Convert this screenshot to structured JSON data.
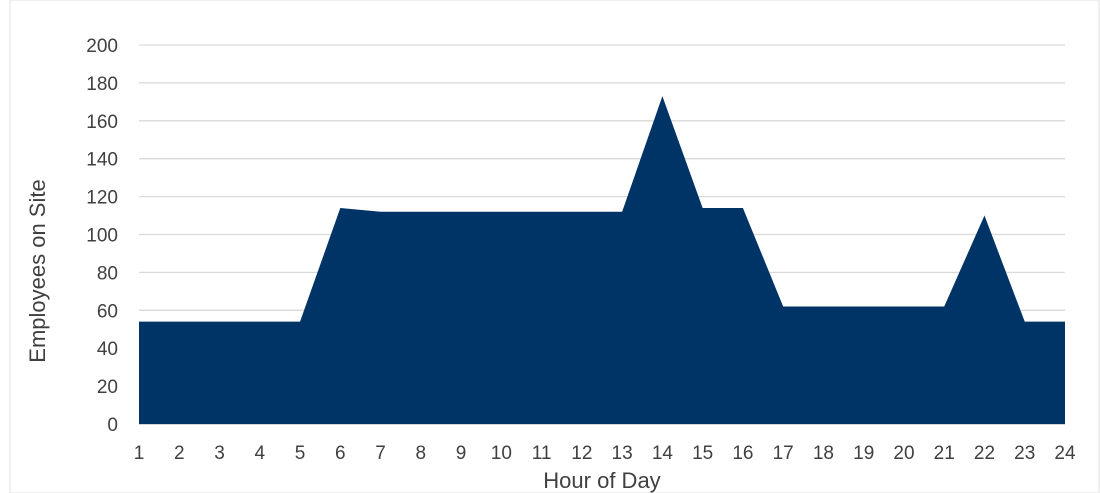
{
  "chart_data": {
    "type": "area",
    "title": "",
    "xlabel": "Hour of Day",
    "ylabel": "Employees on Site",
    "x": [
      1,
      2,
      3,
      4,
      5,
      6,
      7,
      8,
      9,
      10,
      11,
      12,
      13,
      14,
      15,
      16,
      17,
      18,
      19,
      20,
      21,
      22,
      23,
      24
    ],
    "series": [
      {
        "values": [
          54,
          54,
          54,
          54,
          54,
          114,
          112,
          112,
          112,
          112,
          112,
          112,
          112,
          173,
          114,
          114,
          62,
          62,
          62,
          62,
          62,
          110,
          54,
          54
        ]
      }
    ],
    "ylim": [
      0,
      200
    ],
    "yticks": [
      0,
      20,
      40,
      60,
      80,
      100,
      120,
      140,
      160,
      180,
      200
    ],
    "grid": true,
    "legend": "none",
    "colors": {
      "area": "#003366",
      "grid": "#d9d9d9",
      "text": "#404040"
    }
  }
}
